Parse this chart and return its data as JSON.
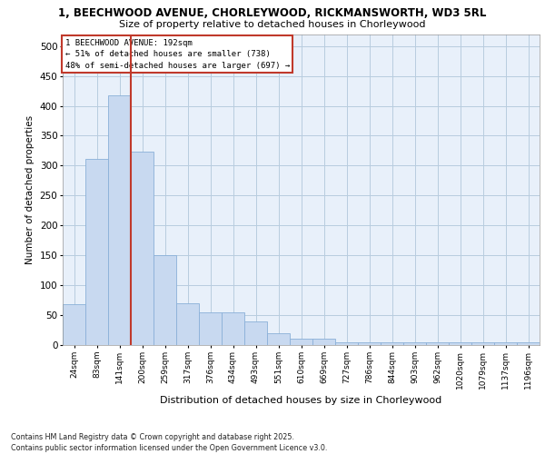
{
  "title_line1": "1, BEECHWOOD AVENUE, CHORLEYWOOD, RICKMANSWORTH, WD3 5RL",
  "title_line2": "Size of property relative to detached houses in Chorleywood",
  "xlabel": "Distribution of detached houses by size in Chorleywood",
  "ylabel": "Number of detached properties",
  "footer": "Contains HM Land Registry data © Crown copyright and database right 2025.\nContains public sector information licensed under the Open Government Licence v3.0.",
  "annotation_title": "1 BEECHWOOD AVENUE: 192sqm",
  "annotation_line2": "← 51% of detached houses are smaller (738)",
  "annotation_line3": "48% of semi-detached houses are larger (697) →",
  "bar_color": "#c8d9f0",
  "bar_edge_color": "#8ab0d8",
  "vline_color": "#c0392b",
  "bg_color": "#e8f0fa",
  "grid_color": "#b8ccdf",
  "bin_labels": [
    "24sqm",
    "83sqm",
    "141sqm",
    "200sqm",
    "259sqm",
    "317sqm",
    "376sqm",
    "434sqm",
    "493sqm",
    "551sqm",
    "610sqm",
    "669sqm",
    "727sqm",
    "786sqm",
    "844sqm",
    "903sqm",
    "962sqm",
    "1020sqm",
    "1079sqm",
    "1137sqm",
    "1196sqm"
  ],
  "counts": [
    68,
    312,
    418,
    323,
    150,
    70,
    55,
    55,
    40,
    20,
    10,
    10,
    5,
    5,
    5,
    5,
    5,
    5,
    5,
    5,
    5
  ],
  "vline_x": 2.5,
  "ylim": [
    0,
    520
  ],
  "yticks": [
    0,
    50,
    100,
    150,
    200,
    250,
    300,
    350,
    400,
    450,
    500
  ]
}
